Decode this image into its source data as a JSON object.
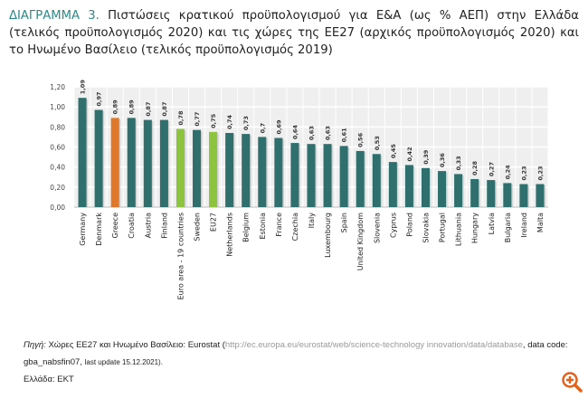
{
  "title": {
    "lead": "ΔΙΑΓΡΑΜΜΑ 3.",
    "text": "Πιστώσεις κρατικού προϋπολογισμού για Ε&Α (ως % ΑΕΠ) στην Ελλάδα (τελικός προϋπολογισμός 2020) και τις χώρες της ΕΕ27 (αρχικός προϋπολογισμός 2020) και το Ηνωμένο Βασίλειο (τελικός προϋπολογισμός 2019)"
  },
  "source": {
    "label": "Πηγή:",
    "text1": "Χώρες ΕΕ27 και Ηνωμένο Βασίλειο: Eurostat (",
    "url": "http://ec.europa.eu/eurostat/web/science-technology innovation/data/database",
    "text2": ", data code: gba_nabsfin07,",
    "update": "last update 15.12.2021).",
    "greece": "Ελλάδα: ΕΚΤ"
  },
  "colors": {
    "default": "#2f6f6d",
    "greece": "#e0782b",
    "aggregate": "#8cc43f"
  },
  "chart_data": {
    "type": "bar",
    "categories": [
      "Germany",
      "Denmark",
      "Greece",
      "Croatia",
      "Austria",
      "Finland",
      "Euro area - 19 countries",
      "Sweden",
      "EU27",
      "Netherlands",
      "Belgium",
      "Estonia",
      "France",
      "Czechia",
      "Italy",
      "Luxembourg",
      "Spain",
      "United Kingdom",
      "Slovenia",
      "Cyprus",
      "Poland",
      "Slovakia",
      "Portugal",
      "Lithuania",
      "Hungary",
      "Latvia",
      "Bulgaria",
      "Ireland",
      "Malta"
    ],
    "values": [
      1.09,
      0.97,
      0.89,
      0.89,
      0.87,
      0.87,
      0.78,
      0.77,
      0.75,
      0.74,
      0.73,
      0.7,
      0.69,
      0.64,
      0.63,
      0.63,
      0.61,
      0.56,
      0.53,
      0.45,
      0.42,
      0.39,
      0.36,
      0.33,
      0.28,
      0.27,
      0.24,
      0.23,
      0.23
    ],
    "labels": [
      "1,09",
      "0,97",
      "0,89",
      "0,89",
      "0,87",
      "0,87",
      "0,78",
      "0,77",
      "0,75",
      "0,74",
      "0,73",
      "0,7",
      "0,69",
      "0,64",
      "0,63",
      "0,63",
      "0,61",
      "0,56",
      "0,53",
      "0,45",
      "0,42",
      "0,39",
      "0,36",
      "0,33",
      "0,28",
      "0,27",
      "0,24",
      "0,23",
      "0,23"
    ],
    "ylim": [
      0,
      1.2
    ],
    "yticks": [
      "0,00",
      "0,20",
      "0,40",
      "0,60",
      "0,80",
      "1,00",
      "1,20"
    ],
    "grid": true,
    "highlight": {
      "Greece": "greece",
      "Euro area - 19 countries": "aggregate",
      "EU27": "aggregate"
    }
  }
}
